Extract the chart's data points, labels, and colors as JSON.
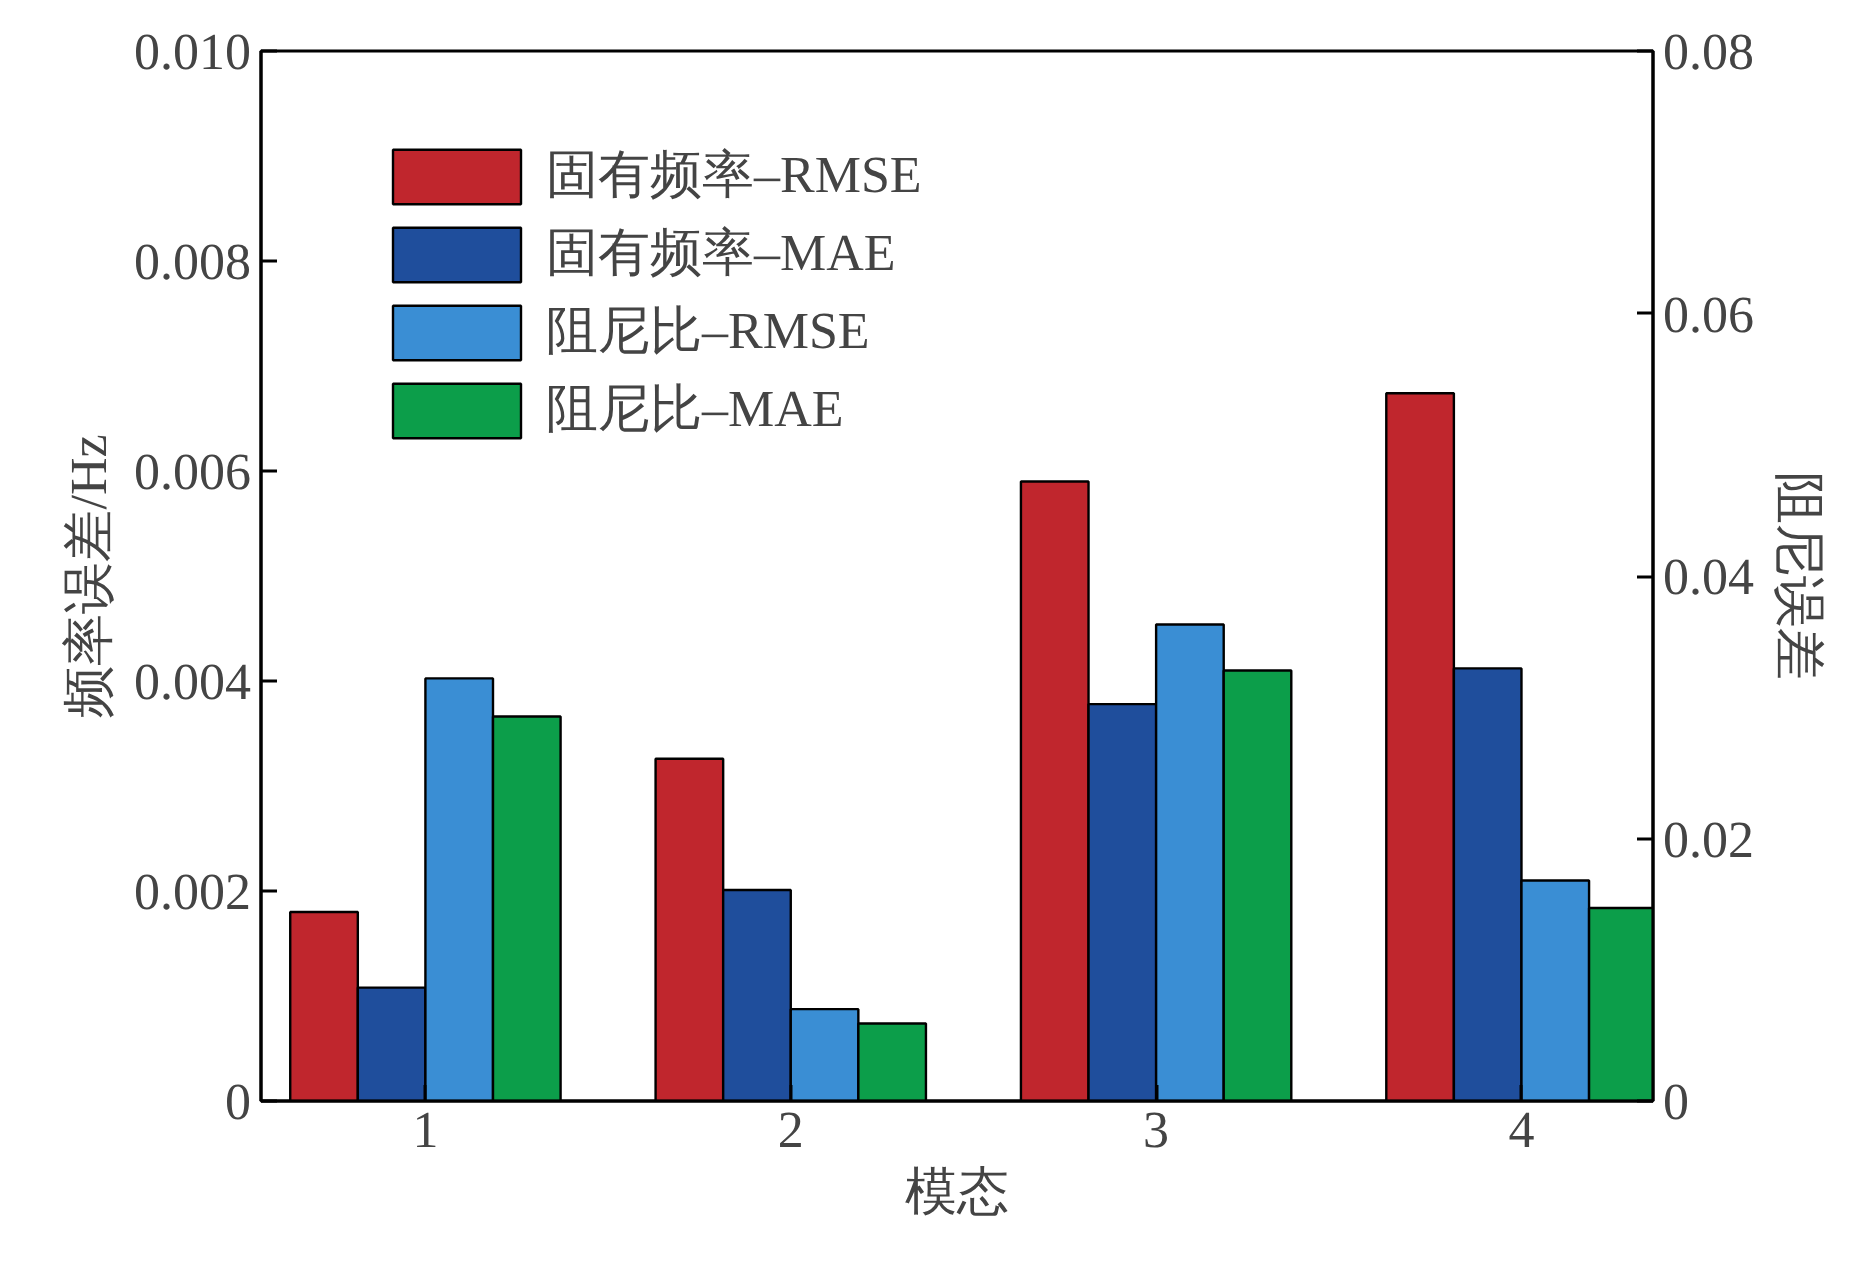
{
  "chart_data": {
    "type": "bar",
    "xlabel": "模态",
    "ylabel": "频率误差/Hz",
    "y2label": "阻尼误差",
    "categories": [
      "1",
      "2",
      "3",
      "4"
    ],
    "ylim": [
      0,
      0.01
    ],
    "yticks": [
      0,
      0.002,
      0.004,
      0.006,
      0.008,
      {
        "value": 0.01,
        "label": "0.010"
      }
    ],
    "y2lim": [
      0,
      0.08
    ],
    "y2ticks": [
      0,
      0.02,
      0.04,
      0.06,
      0.08
    ],
    "legend": "top left",
    "grid": false,
    "series": [
      {
        "name": "固有频率–RMSE",
        "color": "#c0262d",
        "values": [
          0.0018,
          0.00326,
          0.0059,
          0.00674
        ]
      },
      {
        "name": "固有频率–MAE",
        "color": "#1f4e9c",
        "values": [
          0.00108,
          0.00201,
          0.00378,
          0.00412
        ]
      },
      {
        "name": "阻尼比–RMSE",
        "color": "#3a8ed4",
        "axis": "y2",
        "values": [
          0.0322,
          0.007,
          0.0363,
          0.0168
        ]
      },
      {
        "name": "阻尼比–MAE",
        "color": "#0c9e4a",
        "axis": "y2",
        "values": [
          0.0293,
          0.0059,
          0.0328,
          0.0147
        ]
      }
    ]
  }
}
